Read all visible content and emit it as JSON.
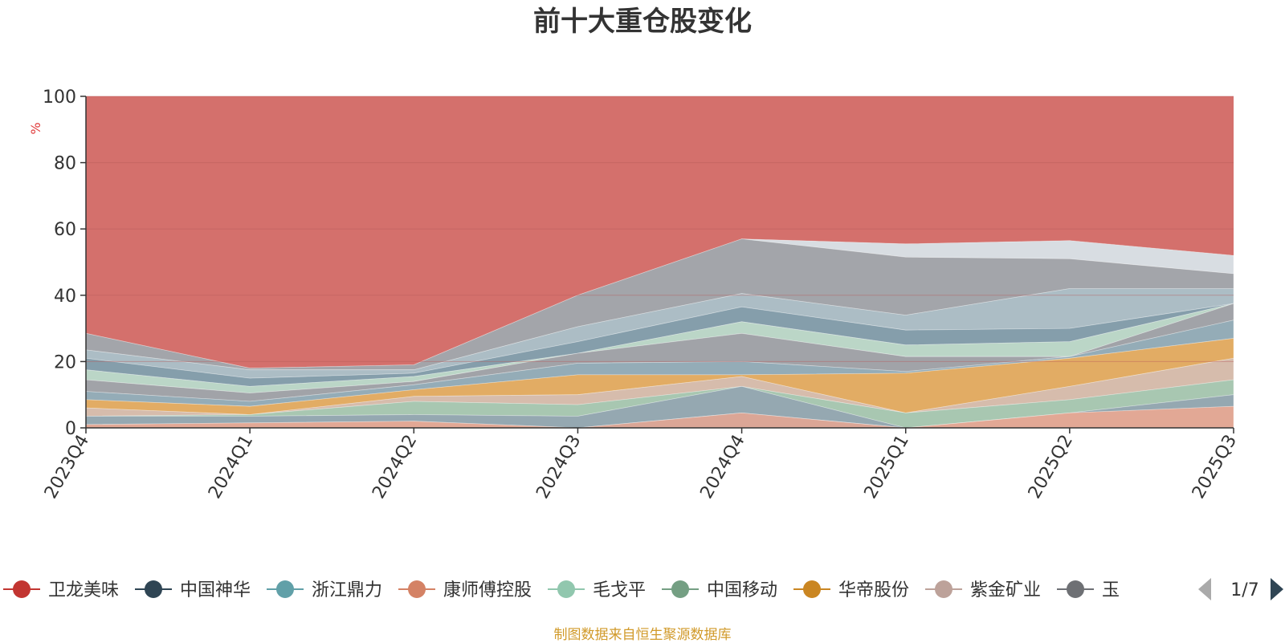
{
  "chart_data": {
    "type": "area",
    "title": "前十大重仓股变化",
    "ylabel": "%",
    "xlabel": "",
    "ylim": [
      0,
      100
    ],
    "yticks": [
      0,
      20,
      40,
      60,
      80,
      100
    ],
    "grid": true,
    "categories": [
      "2023Q4",
      "2024Q1",
      "2024Q2",
      "2024Q3",
      "2024Q4",
      "2025Q1",
      "2025Q2",
      "2025Q3"
    ],
    "stacked_boundaries": [
      {
        "name": "s1",
        "color": "#d9a190",
        "values": [
          0,
          0,
          0,
          0,
          4.5,
          0,
          0,
          0
        ]
      },
      {
        "name": "s2",
        "color": "#e0a38f",
        "values": [
          1,
          1.5,
          2,
          0,
          4.5,
          0,
          4.5,
          6.5
        ]
      },
      {
        "name": "s3",
        "color": "#8fa3ad",
        "values": [
          3.5,
          3.5,
          4,
          3.5,
          12.5,
          0,
          4.5,
          10
        ]
      },
      {
        "name": "s4",
        "color": "#a3c4ad",
        "values": [
          3.5,
          4,
          8,
          7,
          12.5,
          4.5,
          8.5,
          14.5
        ]
      },
      {
        "name": "s5",
        "color": "#d4b8a8",
        "values": [
          6,
          4,
          9.5,
          10,
          15.5,
          4.5,
          12.5,
          21
        ]
      },
      {
        "name": "s6",
        "color": "#e0a85c",
        "values": [
          8.5,
          6.5,
          11.5,
          16,
          16,
          16.5,
          21,
          27
        ]
      },
      {
        "name": "s7",
        "color": "#8ea8b3",
        "values": [
          11,
          8,
          13,
          19.5,
          20,
          17,
          21.5,
          32.5
        ]
      },
      {
        "name": "s8",
        "color": "#9c9ea3",
        "values": [
          14.5,
          10.5,
          14,
          22.5,
          28.5,
          21.5,
          21.5,
          37.5
        ]
      },
      {
        "name": "s9",
        "color": "#b7d4c4",
        "values": [
          17.5,
          12.5,
          15.5,
          22.5,
          32,
          25,
          26,
          37.5
        ]
      },
      {
        "name": "s10",
        "color": "#7e99a6",
        "values": [
          21,
          15,
          16.5,
          26,
          36.5,
          29.5,
          30,
          37.5
        ]
      },
      {
        "name": "s11",
        "color": "#a8b9c2",
        "values": [
          23.5,
          17.5,
          17.5,
          30.5,
          40.5,
          34,
          42,
          42
        ]
      },
      {
        "name": "s12",
        "color": "#9ea0a5",
        "values": [
          28.5,
          18,
          19,
          40,
          57,
          51.5,
          51,
          46.5
        ]
      },
      {
        "name": "s13",
        "color": "#d6dbe0",
        "values": [
          28.5,
          18,
          19,
          40,
          57,
          55.5,
          56.5,
          52
        ]
      }
    ],
    "top_series": {
      "name": "卫龙美味",
      "color": "#d4706c",
      "top": 100
    },
    "legend": {
      "position": "bottom",
      "items": [
        {
          "name": "卫龙美味",
          "color": "#c23531"
        },
        {
          "name": "中国神华",
          "color": "#2f4554"
        },
        {
          "name": "浙江鼎力",
          "color": "#61a0a8"
        },
        {
          "name": "康师傅控股",
          "color": "#d48265"
        },
        {
          "name": "毛戈平",
          "color": "#91c7ae"
        },
        {
          "name": "中国移动",
          "color": "#749f83"
        },
        {
          "name": "华帝股份",
          "color": "#ca8622"
        },
        {
          "name": "紫金矿业",
          "color": "#bda29a"
        },
        {
          "name": "玉",
          "color": "#6e7074"
        }
      ],
      "page": "1/7"
    },
    "source_note": "制图数据来自恒生聚源数据库",
    "colors": {
      "axis": "#333333",
      "grid": "#b85a5a",
      "ylabel": "#e03a3a",
      "nav_prev": "#aaaaaa",
      "nav_next": "#2f4554"
    }
  }
}
